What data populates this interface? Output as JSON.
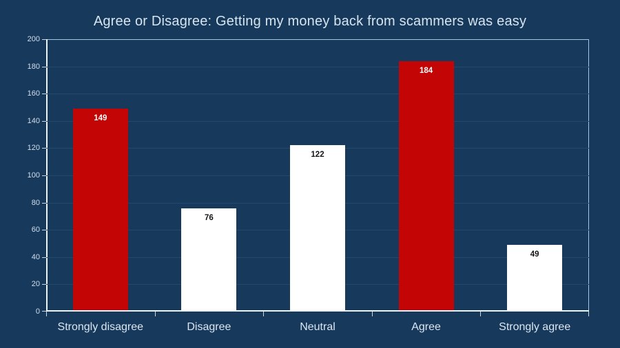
{
  "title": "Agree or Disagree: Getting my money back from scammers was easy",
  "colors": {
    "background": "#17395c",
    "title_text": "#d6e4f0",
    "tick_text": "#d3dfee",
    "xlabel_text": "#dbe6f2",
    "plot_border": "#a9c6e0",
    "axis_line": "#eef4fa",
    "gridline": "#234a6d",
    "bar_red": "#c30505",
    "bar_white": "#ffffff",
    "label_on_red": "#ffffff",
    "label_on_white": "#141414"
  },
  "chart_data": {
    "type": "bar",
    "title": "Agree or Disagree: Getting my money back from scammers was easy",
    "categories": [
      "Strongly disagree",
      "Disagree",
      "Neutral",
      "Agree",
      "Strongly agree"
    ],
    "values": [
      149,
      76,
      122,
      184,
      49
    ],
    "bar_colors": [
      "#c30505",
      "#ffffff",
      "#ffffff",
      "#c30505",
      "#ffffff"
    ],
    "value_label_colors": [
      "#ffffff",
      "#141414",
      "#141414",
      "#ffffff",
      "#141414"
    ],
    "value_label_position": "inside-end",
    "xlabel": "",
    "ylabel": "",
    "ylim": [
      0,
      200
    ],
    "yticks": [
      0,
      20,
      40,
      60,
      80,
      100,
      120,
      140,
      160,
      180,
      200
    ],
    "grid": true,
    "legend": "none",
    "plot_background": "#17395c"
  }
}
